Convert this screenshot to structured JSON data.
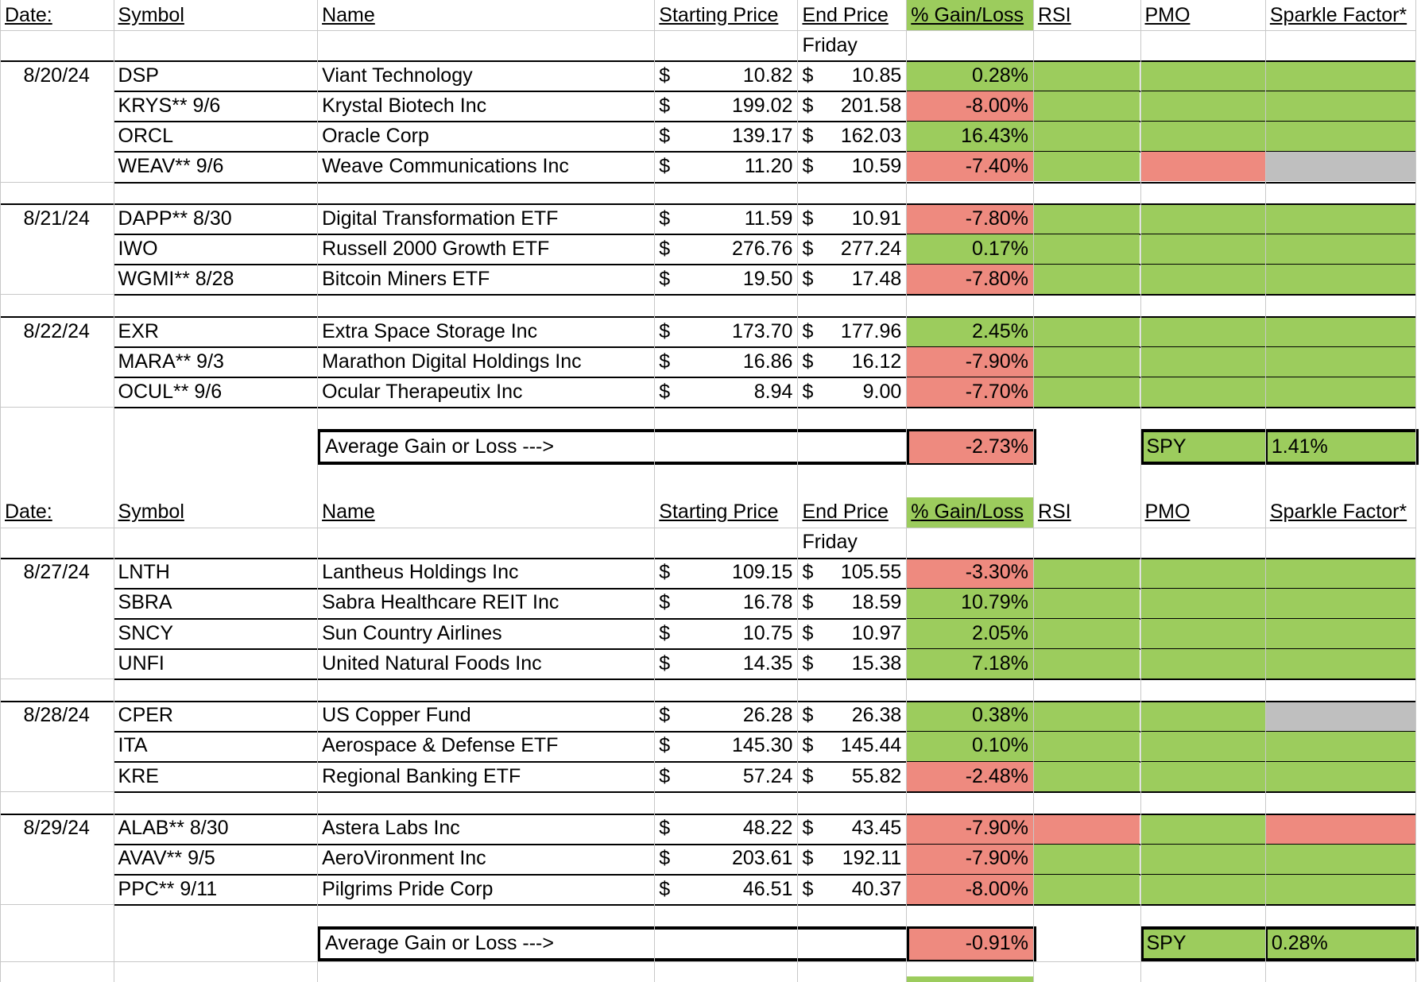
{
  "colors": {
    "green": "#9ccc5d",
    "red": "#ee8a7f",
    "gray": "#bfbfbf"
  },
  "header": {
    "date": "Date:",
    "symbol": "Symbol",
    "name": "Name",
    "starting_price": "Starting Price",
    "end_price": "End Price",
    "gain_loss": "% Gain/Loss",
    "rsi": "RSI",
    "pmo": "PMO",
    "sparkle": "Sparkle Factor*",
    "subheader": "Friday"
  },
  "currency_symbol": "$",
  "summary_label": "Average Gain or Loss --->",
  "spy_label": "SPY",
  "tables": [
    {
      "groups": [
        {
          "date": "8/20/24",
          "rows": [
            {
              "symbol": "DSP",
              "name": "Viant Technology",
              "start": "10.82",
              "end": "10.85",
              "gain": "0.28%",
              "gain_color": "green",
              "rsi": "green",
              "pmo": "green",
              "sparkle": "green"
            },
            {
              "symbol": "KRYS** 9/6",
              "name": "Krystal Biotech Inc",
              "start": "199.02",
              "end": "201.58",
              "gain": "-8.00%",
              "gain_color": "red",
              "rsi": "green",
              "pmo": "green",
              "sparkle": "green"
            },
            {
              "symbol": "ORCL",
              "name": "Oracle Corp",
              "start": "139.17",
              "end": "162.03",
              "gain": "16.43%",
              "gain_color": "green",
              "rsi": "green",
              "pmo": "green",
              "sparkle": "green"
            },
            {
              "symbol": "WEAV** 9/6",
              "name": "Weave Communications Inc",
              "start": "11.20",
              "end": "10.59",
              "gain": "-7.40%",
              "gain_color": "red",
              "rsi": "green",
              "pmo": "red",
              "sparkle": "gray"
            }
          ]
        },
        {
          "date": "8/21/24",
          "rows": [
            {
              "symbol": "DAPP** 8/30",
              "name": "Digital Transformation ETF",
              "start": "11.59",
              "end": "10.91",
              "gain": "-7.80%",
              "gain_color": "red",
              "rsi": "green",
              "pmo": "green",
              "sparkle": "green"
            },
            {
              "symbol": "IWO",
              "name": "Russell 2000 Growth ETF",
              "start": "276.76",
              "end": "277.24",
              "gain": "0.17%",
              "gain_color": "green",
              "rsi": "green",
              "pmo": "green",
              "sparkle": "green"
            },
            {
              "symbol": "WGMI** 8/28",
              "name": "Bitcoin Miners ETF",
              "start": "19.50",
              "end": "17.48",
              "gain": "-7.80%",
              "gain_color": "red",
              "rsi": "green",
              "pmo": "green",
              "sparkle": "green"
            }
          ]
        },
        {
          "date": "8/22/24",
          "rows": [
            {
              "symbol": "EXR",
              "name": "Extra Space Storage Inc",
              "start": "173.70",
              "end": "177.96",
              "gain": "2.45%",
              "gain_color": "green",
              "rsi": "green",
              "pmo": "green",
              "sparkle": "green"
            },
            {
              "symbol": "MARA** 9/3",
              "name": "Marathon Digital Holdings Inc",
              "start": "16.86",
              "end": "16.12",
              "gain": "-7.90%",
              "gain_color": "red",
              "rsi": "green",
              "pmo": "green",
              "sparkle": "green"
            },
            {
              "symbol": "OCUL** 9/6",
              "name": "Ocular Therapeutix Inc",
              "start": "8.94",
              "end": "9.00",
              "gain": "-7.70%",
              "gain_color": "red",
              "rsi": "green",
              "pmo": "green",
              "sparkle": "green"
            }
          ]
        }
      ],
      "average": "-2.73%",
      "spy": "1.41%"
    },
    {
      "groups": [
        {
          "date": "8/27/24",
          "rows": [
            {
              "symbol": "LNTH",
              "name": "Lantheus Holdings Inc",
              "start": "109.15",
              "end": "105.55",
              "gain": "-3.30%",
              "gain_color": "red",
              "rsi": "green",
              "pmo": "green",
              "sparkle": "green"
            },
            {
              "symbol": "SBRA",
              "name": "Sabra Healthcare REIT Inc",
              "start": "16.78",
              "end": "18.59",
              "gain": "10.79%",
              "gain_color": "green",
              "rsi": "green",
              "pmo": "green",
              "sparkle": "green"
            },
            {
              "symbol": "SNCY",
              "name": "Sun Country Airlines",
              "start": "10.75",
              "end": "10.97",
              "gain": "2.05%",
              "gain_color": "green",
              "rsi": "green",
              "pmo": "green",
              "sparkle": "green"
            },
            {
              "symbol": "UNFI",
              "name": "United Natural Foods Inc",
              "start": "14.35",
              "end": "15.38",
              "gain": "7.18%",
              "gain_color": "green",
              "rsi": "green",
              "pmo": "green",
              "sparkle": "green"
            }
          ]
        },
        {
          "date": "8/28/24",
          "rows": [
            {
              "symbol": "CPER",
              "name": "US Copper Fund",
              "start": "26.28",
              "end": "26.38",
              "gain": "0.38%",
              "gain_color": "green",
              "rsi": "green",
              "pmo": "green",
              "sparkle": "gray"
            },
            {
              "symbol": "ITA",
              "name": "Aerospace & Defense ETF",
              "start": "145.30",
              "end": "145.44",
              "gain": "0.10%",
              "gain_color": "green",
              "rsi": "green",
              "pmo": "green",
              "sparkle": "green"
            },
            {
              "symbol": "KRE",
              "name": "Regional Banking ETF",
              "start": "57.24",
              "end": "55.82",
              "gain": "-2.48%",
              "gain_color": "red",
              "rsi": "green",
              "pmo": "green",
              "sparkle": "green"
            }
          ]
        },
        {
          "date": "8/29/24",
          "rows": [
            {
              "symbol": "ALAB** 8/30",
              "name": "Astera Labs Inc",
              "start": "48.22",
              "end": "43.45",
              "gain": "-7.90%",
              "gain_color": "red",
              "rsi": "red",
              "pmo": "green",
              "sparkle": "red"
            },
            {
              "symbol": "AVAV** 9/5",
              "name": "AeroVironment Inc",
              "start": "203.61",
              "end": "192.11",
              "gain": "-7.90%",
              "gain_color": "red",
              "rsi": "green",
              "pmo": "green",
              "sparkle": "green"
            },
            {
              "symbol": "PPC** 9/11",
              "name": "Pilgrims Pride Corp",
              "start": "46.51",
              "end": "40.37",
              "gain": "-8.00%",
              "gain_color": "red",
              "rsi": "green",
              "pmo": "green",
              "sparkle": "green"
            }
          ]
        }
      ],
      "average": "-0.91%",
      "spy": "0.28%"
    }
  ]
}
